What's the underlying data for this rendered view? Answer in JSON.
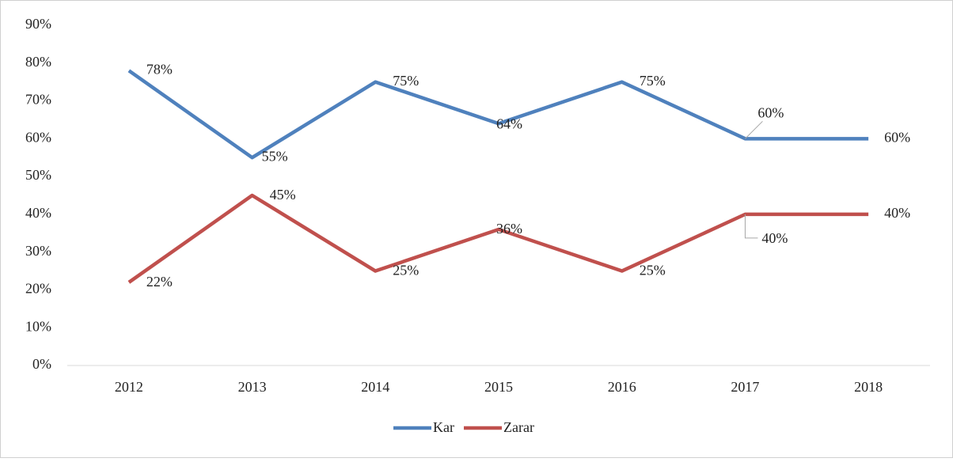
{
  "chart_data": {
    "type": "line",
    "categories": [
      "2012",
      "2013",
      "2014",
      "2015",
      "2016",
      "2017",
      "2018"
    ],
    "series": [
      {
        "name": "Kar",
        "color": "#4f81bd",
        "values": [
          78,
          55,
          75,
          64,
          75,
          60,
          60
        ],
        "value_labels": [
          "78%",
          "55%",
          "75%",
          "64%",
          "75%",
          "60%",
          "60%"
        ]
      },
      {
        "name": "Zarar",
        "color": "#c0504d",
        "values": [
          22,
          45,
          25,
          36,
          25,
          40,
          40
        ],
        "value_labels": [
          "22%",
          "45%",
          "25%",
          "36%",
          "25%",
          "40%",
          "40%"
        ]
      }
    ],
    "ylim": [
      0,
      90
    ],
    "yticks": [
      {
        "value": 0,
        "label": "0%"
      },
      {
        "value": 10,
        "label": "10%"
      },
      {
        "value": 20,
        "label": "20%"
      },
      {
        "value": 30,
        "label": "30%"
      },
      {
        "value": 40,
        "label": "40%"
      },
      {
        "value": 50,
        "label": "50%"
      },
      {
        "value": 60,
        "label": "60%"
      },
      {
        "value": 70,
        "label": "70%"
      },
      {
        "value": 80,
        "label": "80%"
      },
      {
        "value": 90,
        "label": "90%"
      }
    ],
    "legend": "bottom"
  }
}
